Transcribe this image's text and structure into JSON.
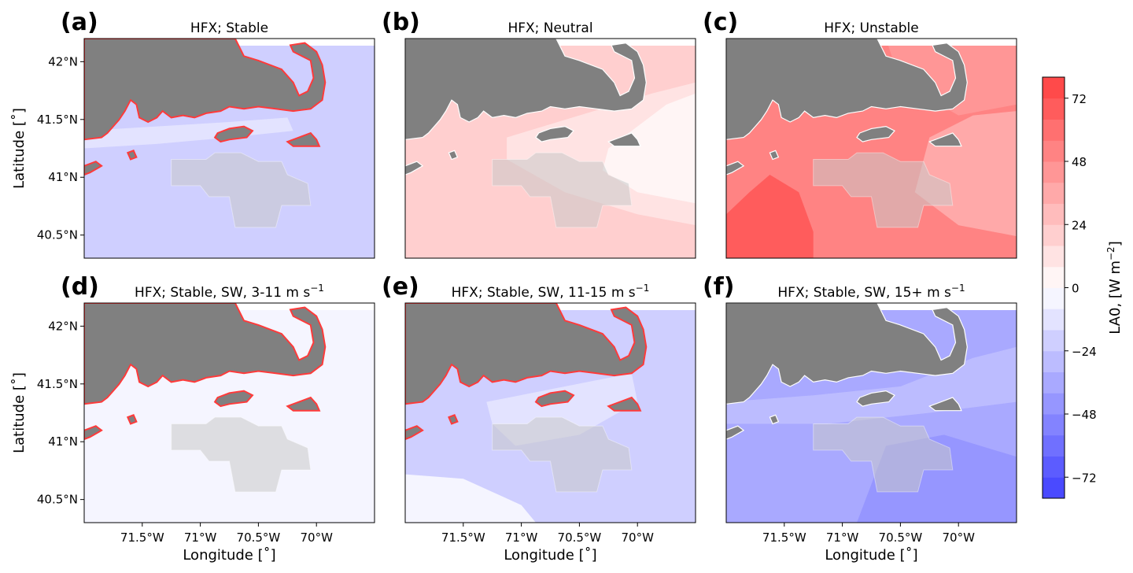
{
  "chart_data": {
    "type": "heatmap",
    "panels": [
      {
        "letter": "(a)",
        "title": "HFX; Stable",
        "title_sup": "",
        "field": "stable",
        "show_ylabel": true,
        "show_xlabel": false,
        "description_values": {
          "offshore_bg": -20,
          "coastal_band": -12,
          "shoreline_max": 72
        }
      },
      {
        "letter": "(b)",
        "title": "HFX; Neutral",
        "title_sup": "",
        "field": "neutral",
        "show_ylabel": false,
        "show_xlabel": false,
        "description_values": {
          "offshore_bg": 20,
          "mid": 12,
          "east": 4
        }
      },
      {
        "letter": "(c)",
        "title": "HFX; Unstable",
        "title_sup": "",
        "field": "unstable",
        "show_ylabel": false,
        "show_xlabel": false,
        "description_values": {
          "southwest": 68,
          "mid": 52,
          "east": 36,
          "northeast": 44
        }
      },
      {
        "letter": "(d)",
        "title": "HFX; Stable, SW, 3-11 m s",
        "title_sup": "−1",
        "field": "sw_low",
        "show_ylabel": true,
        "show_xlabel": true,
        "description_values": {
          "offshore_bg": -6
        }
      },
      {
        "letter": "(e)",
        "title": "HFX; Stable, SW, 11-15 m s",
        "title_sup": "−1",
        "field": "sw_mid",
        "show_ylabel": false,
        "show_xlabel": true,
        "description_values": {
          "offshore_bg": -18,
          "coastal": -10
        }
      },
      {
        "letter": "(f)",
        "title": "HFX; Stable, SW, 15+ m s",
        "title_sup": "−1",
        "field": "sw_high",
        "show_ylabel": false,
        "show_xlabel": true,
        "description_values": {
          "offshore_bg": -36,
          "south": -42,
          "north": -30
        }
      }
    ],
    "x_ticks": [
      {
        "value": -71.5,
        "label": "71.5°W"
      },
      {
        "value": -71.0,
        "label": "71°W"
      },
      {
        "value": -70.5,
        "label": "70.5°W"
      },
      {
        "value": -70.0,
        "label": "70°W"
      }
    ],
    "y_ticks": [
      {
        "value": 42.0,
        "label": "42°N"
      },
      {
        "value": 41.5,
        "label": "41.5°N"
      },
      {
        "value": 41.0,
        "label": "41°N"
      },
      {
        "value": 40.5,
        "label": "40.5°N"
      }
    ],
    "xlim": [
      -72.0,
      -69.5
    ],
    "ylim": [
      40.3,
      42.2
    ],
    "xlabel": "Longitude [˚]",
    "ylabel": "Latitude [˚]",
    "colorbar": {
      "label": "LA0,  [W m",
      "label_sup": "−2",
      "label_end": "]",
      "vmin": -80,
      "vmax": 80,
      "levels": 20,
      "ticks": [
        -72,
        -48,
        -24,
        0,
        24,
        48,
        72
      ],
      "tick_labels": [
        "−72",
        "−48",
        "−24",
        "0",
        "24",
        "48",
        "72"
      ],
      "cmap": "bwr"
    },
    "colors": {
      "land": "#808080",
      "wind_area": "#c8c8c8",
      "shore_hot": "#ff3a3a"
    }
  }
}
